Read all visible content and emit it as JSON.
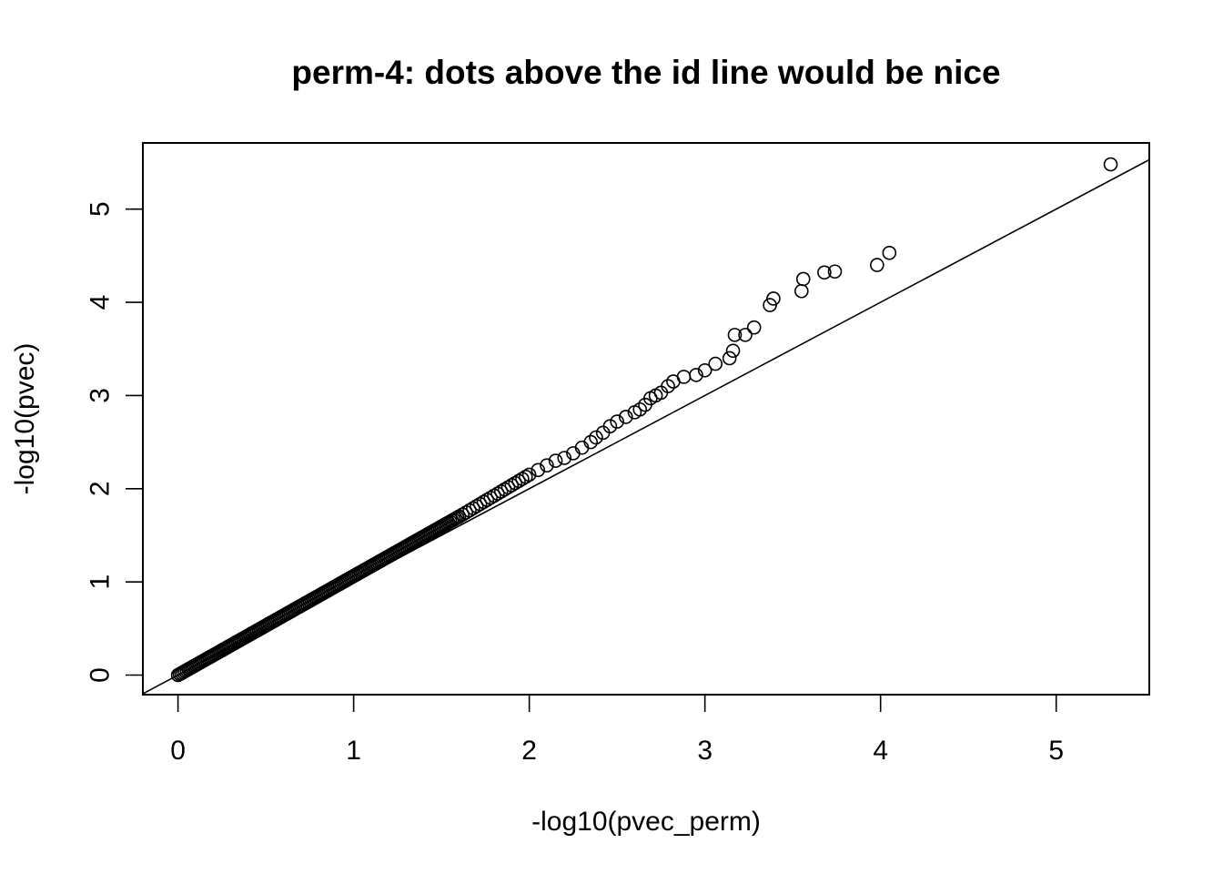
{
  "chart_data": {
    "type": "scatter",
    "title": "perm-4: dots above the id line would be nice",
    "xlabel": "-log10(pvec_perm)",
    "ylabel": "-log10(pvec)",
    "xlim": [
      -0.2,
      5.53
    ],
    "ylim": [
      -0.21,
      5.71
    ],
    "xticks": [
      0,
      1,
      2,
      3,
      4,
      5
    ],
    "yticks": [
      0,
      1,
      2,
      3,
      4,
      5
    ],
    "xtick_labels": [
      "0",
      "1",
      "2",
      "3",
      "4",
      "5"
    ],
    "ytick_labels": [
      "0",
      "1",
      "2",
      "3",
      "4",
      "5"
    ],
    "grid": false,
    "marker": "open-circle",
    "reference_line": {
      "type": "identity",
      "slope": 1,
      "intercept": 0
    },
    "colors": {
      "points": "#000000",
      "line": "#000000",
      "background": "#ffffff"
    },
    "dense_segments": [
      {
        "x_from": 0.0,
        "y_from": 0.0,
        "x_to": 1.6,
        "y_to": 1.7,
        "step": 0.01
      },
      {
        "x_from": 1.6,
        "y_from": 1.7,
        "x_to": 2.0,
        "y_to": 2.15,
        "step": 0.02
      }
    ],
    "points": [
      [
        2.05,
        2.2
      ],
      [
        2.1,
        2.25
      ],
      [
        2.15,
        2.3
      ],
      [
        2.2,
        2.33
      ],
      [
        2.25,
        2.38
      ],
      [
        2.3,
        2.44
      ],
      [
        2.35,
        2.5
      ],
      [
        2.38,
        2.55
      ],
      [
        2.42,
        2.6
      ],
      [
        2.46,
        2.67
      ],
      [
        2.5,
        2.72
      ],
      [
        2.55,
        2.77
      ],
      [
        2.6,
        2.82
      ],
      [
        2.63,
        2.85
      ],
      [
        2.66,
        2.9
      ],
      [
        2.69,
        2.97
      ],
      [
        2.72,
        3.0
      ],
      [
        2.75,
        3.03
      ],
      [
        2.79,
        3.1
      ],
      [
        2.82,
        3.15
      ],
      [
        2.88,
        3.2
      ],
      [
        2.95,
        3.22
      ],
      [
        3.0,
        3.27
      ],
      [
        3.06,
        3.34
      ],
      [
        3.14,
        3.4
      ],
      [
        3.16,
        3.48
      ],
      [
        3.17,
        3.65
      ],
      [
        3.23,
        3.65
      ],
      [
        3.28,
        3.73
      ],
      [
        3.37,
        3.97
      ],
      [
        3.39,
        4.04
      ],
      [
        3.55,
        4.12
      ],
      [
        3.56,
        4.25
      ],
      [
        3.68,
        4.32
      ],
      [
        3.74,
        4.33
      ],
      [
        3.98,
        4.4
      ],
      [
        4.05,
        4.53
      ],
      [
        5.31,
        5.48
      ]
    ]
  }
}
